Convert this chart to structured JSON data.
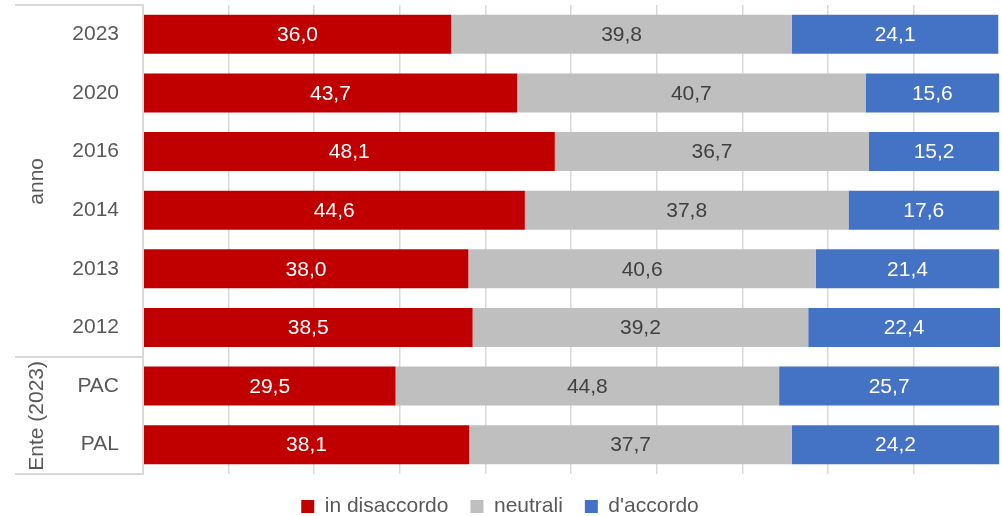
{
  "chart_data": {
    "type": "bar",
    "orientation": "horizontal",
    "stacked": true,
    "categories": [
      "2023",
      "2020",
      "2016",
      "2014",
      "2013",
      "2012",
      "PAC",
      "PAL"
    ],
    "series": [
      {
        "name": "in disaccordo",
        "color": "#c00000",
        "values": [
          36.0,
          43.7,
          48.1,
          44.6,
          38.0,
          38.5,
          29.5,
          38.1
        ],
        "value_labels": [
          "36,0",
          "43,7",
          "48,1",
          "44,6",
          "38,0",
          "38,5",
          "29,5",
          "38,1"
        ]
      },
      {
        "name": "neutrali",
        "color": "#bfbfbf",
        "values": [
          39.8,
          40.7,
          36.7,
          37.8,
          40.6,
          39.2,
          44.8,
          37.7
        ],
        "value_labels": [
          "39,8",
          "40,7",
          "36,7",
          "37,8",
          "40,6",
          "39,2",
          "44,8",
          "37,7"
        ]
      },
      {
        "name": "d'accordo",
        "color": "#4472c4",
        "values": [
          24.1,
          15.6,
          15.2,
          17.6,
          21.4,
          22.4,
          25.7,
          24.2
        ],
        "value_labels": [
          "24,1",
          "15,6",
          "15,2",
          "17,6",
          "21,4",
          "22,4",
          "25,7",
          "24,2"
        ]
      }
    ],
    "xlim": [
      0,
      100.1
    ],
    "xticks": [
      {
        "value": 0,
        "label": null
      },
      {
        "value": 10,
        "label": null
      },
      {
        "value": 20,
        "label": null
      },
      {
        "value": 30,
        "label": null
      },
      {
        "value": 40,
        "label": null
      },
      {
        "value": 50,
        "label": null
      },
      {
        "value": 60,
        "label": null
      },
      {
        "value": 70,
        "label": null
      },
      {
        "value": 80,
        "label": null
      },
      {
        "value": 90,
        "label": null
      }
    ],
    "annotations": [
      "anno",
      "Ente (2023)"
    ],
    "grid": "x",
    "legend": "bottom",
    "tick_labels": "y"
  }
}
